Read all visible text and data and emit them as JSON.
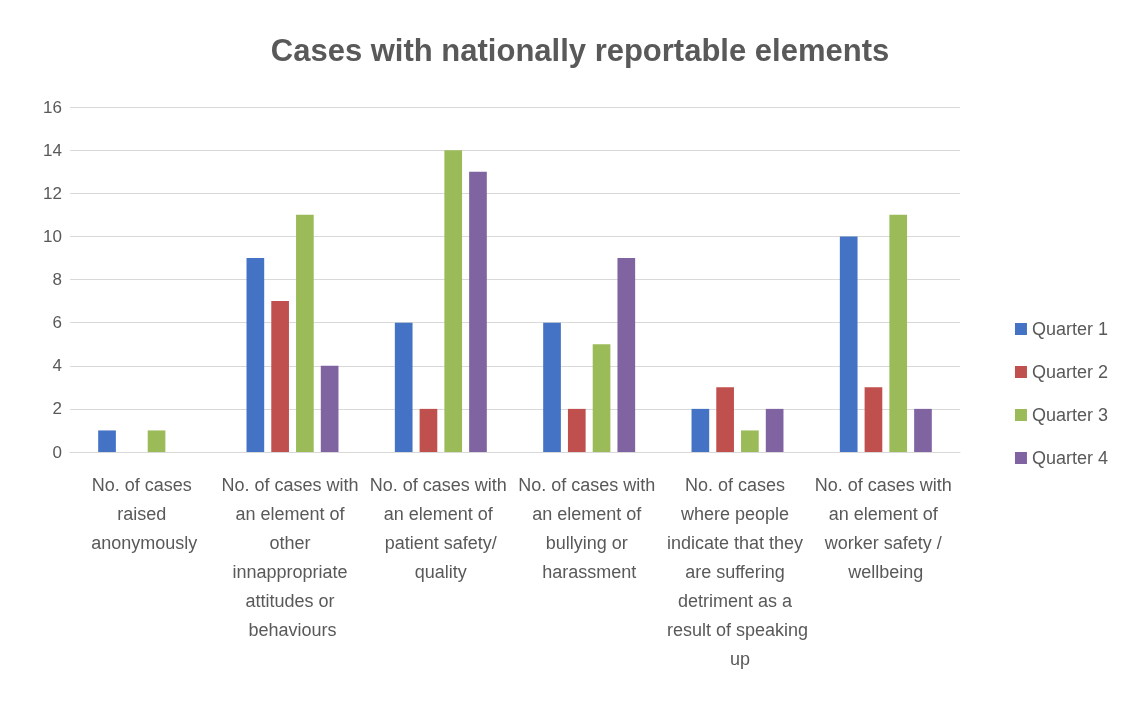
{
  "chart_data": {
    "type": "bar",
    "title": "Cases with nationally reportable elements",
    "categories": [
      "No. of cases raised anonymously",
      "No. of cases with an element of other innappropriate attitudes or behaviours",
      "No. of cases with an element of patient safety/quality",
      "No. of cases with an element of bullying or harassment",
      "No. of cases where people indicate that they are suffering detriment as a result of speaking up",
      "No. of cases with an element of worker safety / wellbeing"
    ],
    "series": [
      {
        "name": "Quarter 1",
        "color": "#4472c4",
        "values": [
          1,
          9,
          6,
          6,
          2,
          10
        ]
      },
      {
        "name": "Quarter 2",
        "color": "#c0504d",
        "values": [
          0,
          7,
          2,
          2,
          3,
          3
        ]
      },
      {
        "name": "Quarter 3",
        "color": "#9bbb59",
        "values": [
          1,
          11,
          14,
          5,
          1,
          11
        ]
      },
      {
        "name": "Quarter 4",
        "color": "#8064a2",
        "values": [
          0,
          4,
          13,
          9,
          2,
          2
        ]
      }
    ],
    "ylim": [
      0,
      16
    ],
    "yticks": [
      0,
      2,
      4,
      6,
      8,
      10,
      12,
      14,
      16
    ],
    "grid": "y",
    "legend": "right"
  }
}
